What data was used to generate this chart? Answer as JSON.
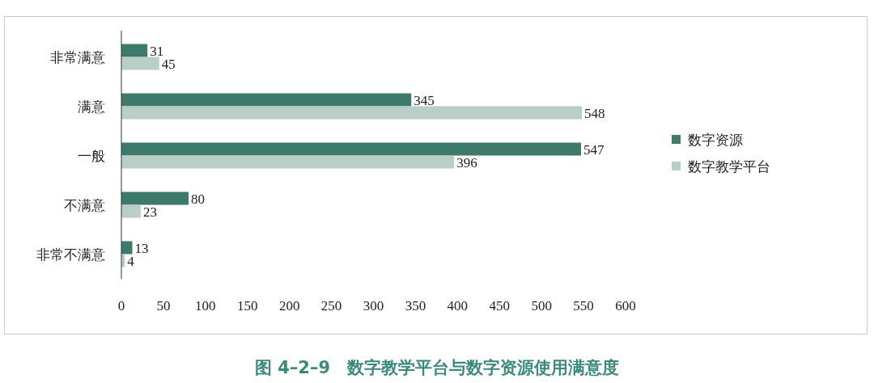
{
  "chart_data": {
    "type": "bar",
    "orientation": "horizontal",
    "title": "图 4–2–9　数字教学平台与数字资源使用满意度",
    "categories": [
      "非常满意",
      "满意",
      "一般",
      "不满意",
      "非常不满意"
    ],
    "series": [
      {
        "name": "数字资源",
        "color": "#3d7a6c",
        "values": [
          31,
          345,
          547,
          80,
          13
        ]
      },
      {
        "name": "数字教学平台",
        "color": "#b8cec7",
        "values": [
          45,
          548,
          396,
          23,
          4
        ]
      }
    ],
    "xlim": [
      0,
      600
    ],
    "xticks": [
      0,
      50,
      100,
      150,
      200,
      250,
      300,
      350,
      400,
      450,
      500,
      550,
      600
    ],
    "data_labels": true,
    "legend": "right",
    "grid": false
  }
}
